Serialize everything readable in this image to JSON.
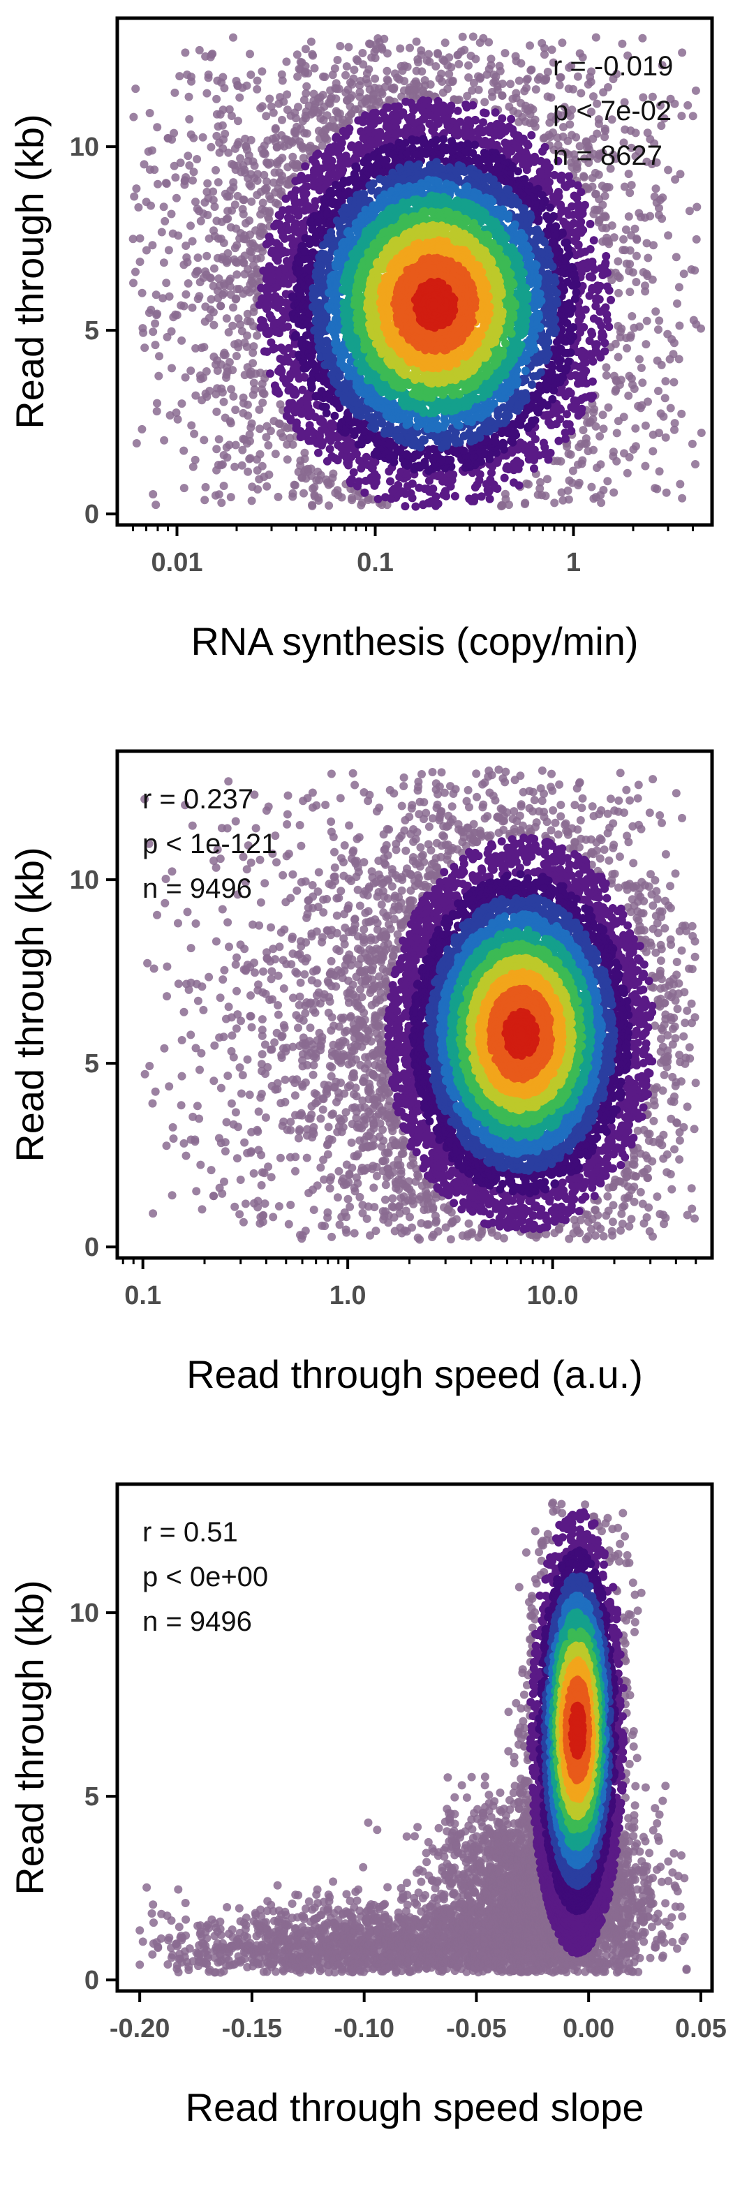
{
  "colors": {
    "palette": [
      "#8a6b91",
      "#5a1a86",
      "#3f0a79",
      "#2a3ea0",
      "#1f6fc0",
      "#14a08c",
      "#3cba54",
      "#bdc92a",
      "#f2a51b",
      "#e85a1a",
      "#d11d10"
    ],
    "frame": "#000000",
    "tick_label": "#4d4d4d"
  },
  "chart_data": [
    {
      "type": "scatter",
      "title": "",
      "xlabel": "RNA synthesis (copy/min)",
      "ylabel": "Read through (kb)",
      "x_scale": "log",
      "xlim": [
        0.005,
        5
      ],
      "ylim": [
        -0.3,
        13.5
      ],
      "x_ticks": [
        {
          "value": 0.01,
          "label": "0.01"
        },
        {
          "value": 0.1,
          "label": "0.1"
        },
        {
          "value": 1,
          "label": "1"
        }
      ],
      "y_ticks": [
        {
          "value": 0,
          "label": "0"
        },
        {
          "value": 5,
          "label": "5"
        },
        {
          "value": 10,
          "label": "10"
        }
      ],
      "grid": false,
      "stats": {
        "r": "r =  -0.019",
        "p": "p < 7e-02",
        "n": "n = 8627"
      },
      "stats_position": "top-right",
      "n": 8627,
      "x_range": [
        0.006,
        4.5
      ],
      "y_range": [
        0.2,
        13
      ],
      "density_center": {
        "x": 0.2,
        "y": 5.7
      },
      "cloud": [
        {
          "weight": 0.55,
          "x_center": 0.2,
          "x_sd_decades": 0.38,
          "y_center": 5.8,
          "y_sd": 2.4
        },
        {
          "weight": 0.35,
          "x_center": 0.15,
          "x_sd_decades": 0.55,
          "y_center": 6.5,
          "y_sd": 3.6
        },
        {
          "weight": 0.1,
          "x_center": 0.1,
          "x_sd_decades": 1.0,
          "y_center": 6.5,
          "y_sd": 3.8
        }
      ]
    },
    {
      "type": "scatter",
      "title": "",
      "xlabel": "Read through speed (a.u.)",
      "ylabel": "Read through (kb)",
      "x_scale": "log",
      "xlim": [
        0.075,
        60
      ],
      "ylim": [
        -0.3,
        13.5
      ],
      "x_ticks": [
        {
          "value": 0.1,
          "label": "0.1"
        },
        {
          "value": 1,
          "label": "1.0"
        },
        {
          "value": 10,
          "label": "10.0"
        }
      ],
      "y_ticks": [
        {
          "value": 0,
          "label": "0"
        },
        {
          "value": 5,
          "label": "5"
        },
        {
          "value": 10,
          "label": "10"
        }
      ],
      "grid": false,
      "stats": {
        "r": "r =  0.237",
        "p": "p < 1e-121",
        "n": "n = 9496"
      },
      "stats_position": "top-left",
      "n": 9496,
      "x_range": [
        0.1,
        50
      ],
      "y_range": [
        0.2,
        13
      ],
      "density_center": {
        "x": 7,
        "y": 5.8
      },
      "cloud": [
        {
          "weight": 0.55,
          "x_center": 7,
          "x_sd_decades": 0.28,
          "y_center": 5.6,
          "y_sd": 2.3
        },
        {
          "weight": 0.35,
          "x_center": 5,
          "x_sd_decades": 0.45,
          "y_center": 6.2,
          "y_sd": 3.3
        },
        {
          "weight": 0.1,
          "x_center": 2,
          "x_sd_decades": 0.75,
          "y_center": 5.0,
          "y_sd": 3.6
        }
      ]
    },
    {
      "type": "scatter",
      "title": "",
      "xlabel": "Read through speed slope",
      "ylabel": "Read through (kb)",
      "x_scale": "linear",
      "xlim": [
        -0.21,
        0.055
      ],
      "ylim": [
        -0.3,
        13.5
      ],
      "x_ticks": [
        {
          "value": -0.2,
          "label": "-0.20"
        },
        {
          "value": -0.15,
          "label": "-0.15"
        },
        {
          "value": -0.1,
          "label": "-0.10"
        },
        {
          "value": -0.05,
          "label": "-0.05"
        },
        {
          "value": 0,
          "label": "0.00"
        },
        {
          "value": 0.05,
          "label": "0.05"
        }
      ],
      "y_ticks": [
        {
          "value": 0,
          "label": "0"
        },
        {
          "value": 5,
          "label": "5"
        },
        {
          "value": 10,
          "label": "10"
        }
      ],
      "grid": false,
      "stats": {
        "r": "r =  0.51",
        "p": "p < 0e+00",
        "n": "n = 9496"
      },
      "stats_position": "top-left",
      "n": 9496,
      "x_range": [
        -0.2,
        0.045
      ],
      "y_range": [
        0.2,
        13
      ],
      "density_center": {
        "x": -0.005,
        "y": 6.8
      },
      "cloud": [
        {
          "weight": 0.5,
          "x_center": -0.005,
          "x_sd": 0.009,
          "y_center": 6.5,
          "y_sd": 2.6
        },
        {
          "weight": 0.32,
          "x_center": -0.02,
          "x_sd": 0.022,
          "y_center": 2.2,
          "y_sd": 1.3
        },
        {
          "weight": 0.18,
          "x_center": -0.09,
          "x_sd": 0.05,
          "y_center": 0.9,
          "y_sd": 0.6
        }
      ]
    }
  ]
}
